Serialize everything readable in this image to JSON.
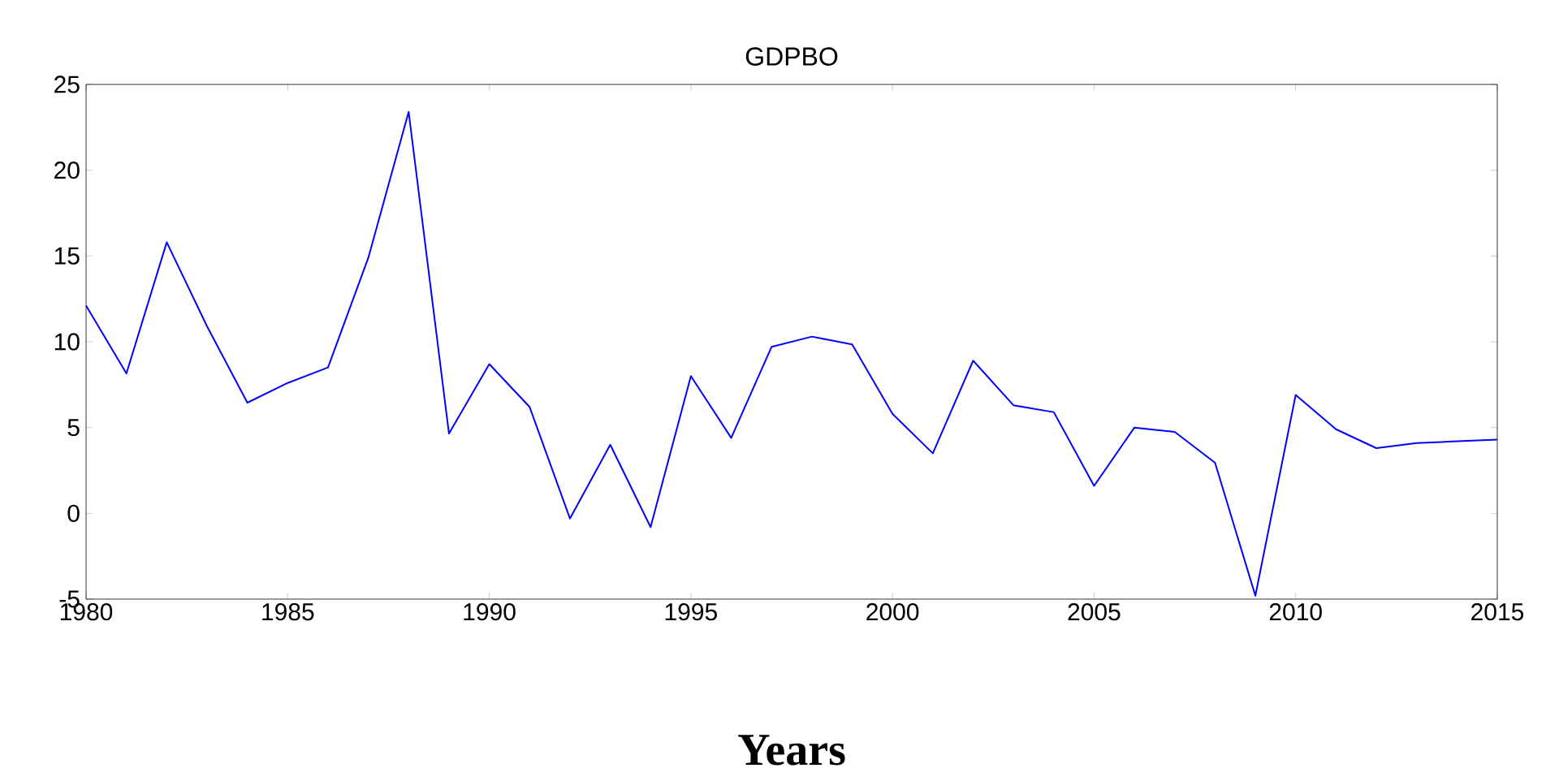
{
  "chart_data": {
    "type": "line",
    "title": "GDPBO",
    "xlabel": "Years",
    "x": [
      1980,
      1981,
      1982,
      1983,
      1984,
      1985,
      1986,
      1987,
      1988,
      1989,
      1990,
      1991,
      1992,
      1993,
      1994,
      1995,
      1996,
      1997,
      1998,
      1999,
      2000,
      2001,
      2002,
      2003,
      2004,
      2005,
      2006,
      2007,
      2008,
      2009,
      2010,
      2011,
      2012,
      2013,
      2014,
      2015
    ],
    "values": [
      12.1,
      8.15,
      15.8,
      10.9,
      6.45,
      7.6,
      8.5,
      14.9,
      23.4,
      4.65,
      8.7,
      6.2,
      -0.3,
      4.0,
      -0.8,
      8.0,
      4.4,
      9.7,
      10.3,
      9.85,
      5.8,
      3.5,
      8.9,
      6.3,
      5.9,
      1.6,
      5.0,
      4.75,
      2.95,
      -4.8,
      6.9,
      4.9,
      3.8,
      4.1,
      4.2,
      4.3
    ],
    "color": "#0000ff",
    "marker": "none",
    "line_style": "solid",
    "xlim": [
      1980,
      2015
    ],
    "ylim": [
      -5,
      25
    ],
    "xticks": [
      1980,
      1985,
      1990,
      1995,
      2000,
      2005,
      2010,
      2015
    ],
    "yticks": [
      -5,
      0,
      5,
      10,
      15,
      20,
      25
    ]
  }
}
